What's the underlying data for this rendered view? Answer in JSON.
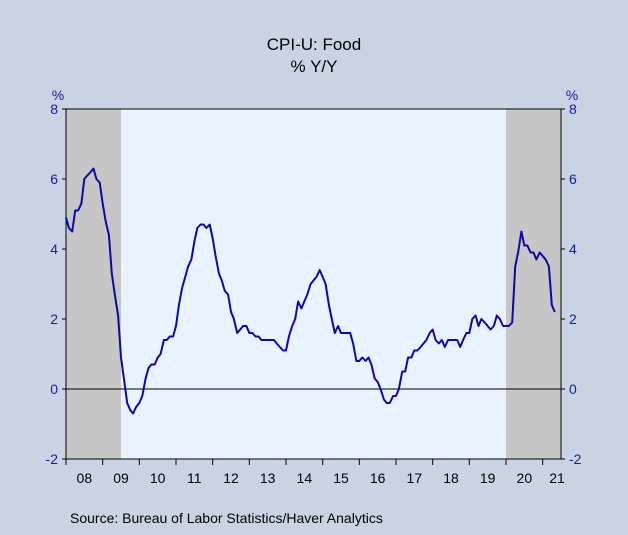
{
  "chart_data": {
    "type": "line",
    "title": "CPI-U: Food",
    "subtitle": "% Y/Y",
    "left_unit": "%",
    "right_unit": "%",
    "source": "Source:  Bureau of Labor Statistics/Haver Analytics",
    "ylim": [
      -2,
      8
    ],
    "y_ticks": [
      -2,
      0,
      2,
      4,
      6,
      8
    ],
    "x_range": [
      2008.0,
      2021.5
    ],
    "x_tick_labels": [
      "08",
      "09",
      "10",
      "11",
      "12",
      "13",
      "14",
      "15",
      "16",
      "17",
      "18",
      "19",
      "20",
      "21"
    ],
    "recessions": [
      [
        2008.0,
        2009.5
      ],
      [
        2020.0,
        2021.5
      ]
    ],
    "zero_line": true,
    "colors": {
      "line": "#0a0aa8",
      "plot_background": "#eaf2ff",
      "recession_shading": "#c6c6c6",
      "outer_background": "#c9d3e3",
      "axis_labels": "#1a1aa8"
    },
    "series": [
      {
        "x": [
          2008.0,
          2008.08,
          2008.17,
          2008.25,
          2008.33,
          2008.42,
          2008.5,
          2008.58,
          2008.67,
          2008.75,
          2008.83,
          2008.92,
          2009.0,
          2009.08,
          2009.17,
          2009.25,
          2009.33,
          2009.42,
          2009.5,
          2009.58,
          2009.67,
          2009.75,
          2009.83,
          2009.92,
          2010.0,
          2010.08,
          2010.17,
          2010.25,
          2010.33,
          2010.42,
          2010.5,
          2010.58,
          2010.67,
          2010.75,
          2010.83,
          2010.92,
          2011.0,
          2011.08,
          2011.17,
          2011.25,
          2011.33,
          2011.42,
          2011.5,
          2011.58,
          2011.67,
          2011.75,
          2011.83,
          2011.92,
          2012.0,
          2012.08,
          2012.17,
          2012.25,
          2012.33,
          2012.42,
          2012.5,
          2012.58,
          2012.67,
          2012.75,
          2012.83,
          2012.92,
          2013.0,
          2013.08,
          2013.17,
          2013.25,
          2013.33,
          2013.42,
          2013.5,
          2013.58,
          2013.67,
          2013.75,
          2013.83,
          2013.92,
          2014.0,
          2014.08,
          2014.17,
          2014.25,
          2014.33,
          2014.42,
          2014.5,
          2014.58,
          2014.67,
          2014.75,
          2014.83,
          2014.92,
          2015.0,
          2015.08,
          2015.17,
          2015.25,
          2015.33,
          2015.42,
          2015.5,
          2015.58,
          2015.67,
          2015.75,
          2015.83,
          2015.92,
          2016.0,
          2016.08,
          2016.17,
          2016.25,
          2016.33,
          2016.42,
          2016.5,
          2016.58,
          2016.67,
          2016.75,
          2016.83,
          2016.92,
          2017.0,
          2017.08,
          2017.17,
          2017.25,
          2017.33,
          2017.42,
          2017.5,
          2017.58,
          2017.67,
          2017.75,
          2017.83,
          2017.92,
          2018.0,
          2018.08,
          2018.17,
          2018.25,
          2018.33,
          2018.42,
          2018.5,
          2018.58,
          2018.67,
          2018.75,
          2018.83,
          2018.92,
          2019.0,
          2019.08,
          2019.17,
          2019.25,
          2019.33,
          2019.42,
          2019.5,
          2019.58,
          2019.67,
          2019.75,
          2019.83,
          2019.92,
          2020.0,
          2020.08,
          2020.17,
          2020.25,
          2020.33,
          2020.42,
          2020.5,
          2020.58,
          2020.67,
          2020.75,
          2020.83,
          2020.92,
          2021.0,
          2021.08,
          2021.17,
          2021.25,
          2021.33
        ],
        "values": [
          4.9,
          4.6,
          4.5,
          5.1,
          5.1,
          5.3,
          6.0,
          6.1,
          6.2,
          6.3,
          6.0,
          5.9,
          5.3,
          4.8,
          4.4,
          3.3,
          2.7,
          2.1,
          0.9,
          0.3,
          -0.4,
          -0.6,
          -0.7,
          -0.5,
          -0.4,
          -0.2,
          0.3,
          0.6,
          0.7,
          0.7,
          0.9,
          1.0,
          1.4,
          1.4,
          1.5,
          1.5,
          1.8,
          2.4,
          2.9,
          3.2,
          3.5,
          3.7,
          4.2,
          4.6,
          4.7,
          4.7,
          4.6,
          4.7,
          4.3,
          3.8,
          3.3,
          3.1,
          2.8,
          2.7,
          2.2,
          2.0,
          1.6,
          1.7,
          1.8,
          1.8,
          1.6,
          1.6,
          1.5,
          1.5,
          1.4,
          1.4,
          1.4,
          1.4,
          1.4,
          1.3,
          1.2,
          1.1,
          1.1,
          1.5,
          1.8,
          2.0,
          2.5,
          2.3,
          2.5,
          2.7,
          3.0,
          3.1,
          3.2,
          3.4,
          3.2,
          3.0,
          2.4,
          2.0,
          1.6,
          1.8,
          1.6,
          1.6,
          1.6,
          1.6,
          1.3,
          0.8,
          0.8,
          0.9,
          0.8,
          0.9,
          0.7,
          0.3,
          0.2,
          0.0,
          -0.3,
          -0.4,
          -0.4,
          -0.2,
          -0.2,
          0.0,
          0.5,
          0.5,
          0.9,
          0.9,
          1.1,
          1.1,
          1.2,
          1.3,
          1.4,
          1.6,
          1.7,
          1.4,
          1.3,
          1.4,
          1.2,
          1.4,
          1.4,
          1.4,
          1.4,
          1.2,
          1.4,
          1.6,
          1.6,
          2.0,
          2.1,
          1.8,
          2.0,
          1.9,
          1.8,
          1.7,
          1.8,
          2.1,
          2.0,
          1.8,
          1.8,
          1.8,
          1.9,
          3.5,
          3.9,
          4.5,
          4.1,
          4.1,
          3.9,
          3.9,
          3.7,
          3.9,
          3.8,
          3.7,
          3.5,
          2.4,
          2.2
        ]
      }
    ]
  }
}
